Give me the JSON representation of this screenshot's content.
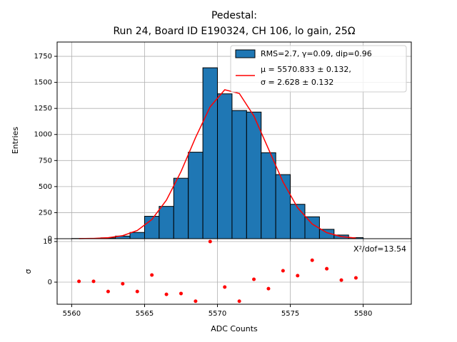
{
  "chart_data": [
    {
      "type": "histogram",
      "title": [
        "Pedestal:",
        "Run 24, Board ID E190324, CH 106, lo gain, 25Ω"
      ],
      "ylabel": "Entries",
      "name": "RMS=2.7, γ=0.09, dip=0.96",
      "color": "#1f77b4",
      "bins": [
        5560,
        5561,
        5562,
        5563,
        5564,
        5565,
        5566,
        5567,
        5568,
        5569,
        5570,
        5571,
        5572,
        5573,
        5574,
        5575,
        5576,
        5577,
        5578,
        5579,
        5580
      ],
      "values": [
        2,
        3,
        8,
        25,
        60,
        215,
        310,
        580,
        830,
        1640,
        1390,
        1230,
        1215,
        825,
        615,
        330,
        210,
        90,
        35,
        10
      ],
      "fit": {
        "name": [
          "μ = 5570.833 ± 0.132,",
          "σ = 2.628 ± 0.132"
        ],
        "color": "#ff0000",
        "x": [
          5560.5,
          5561.5,
          5562.5,
          5563.5,
          5564.5,
          5565.5,
          5566.5,
          5567.5,
          5568.5,
          5569.5,
          5570.5,
          5571.5,
          5572.5,
          5573.5,
          5574.5,
          5575.5,
          5576.5,
          5577.5,
          5578.5,
          5579.5
        ],
        "values": [
          0.6,
          2.6,
          9.5,
          29,
          79,
          184,
          370,
          644,
          971,
          1266,
          1429,
          1394,
          1178,
          861,
          544,
          297,
          141,
          58,
          20,
          6
        ]
      },
      "xlim": [
        5559,
        5583.3
      ],
      "xticks": [
        5560,
        5565,
        5570,
        5575,
        5580
      ],
      "ylim": [
        0,
        1887
      ],
      "yticks": [
        0,
        250,
        500,
        750,
        1000,
        1250,
        1500,
        1750
      ],
      "grid": true,
      "legend": "upper right"
    },
    {
      "type": "scatter",
      "xlabel": "ADC Counts",
      "ylabel": "σ",
      "color": "#ff0000",
      "annotation": "X²/dof=13.54",
      "x": [
        5560.5,
        5561.5,
        5562.5,
        5563.5,
        5564.5,
        5565.5,
        5566.5,
        5567.5,
        5568.5,
        5569.5,
        5570.5,
        5571.5,
        5572.5,
        5573.5,
        5574.5,
        5575.5,
        5576.5,
        5577.5,
        5578.5,
        5579.5
      ],
      "values": [
        0.2,
        0.2,
        -2.3,
        -0.4,
        -2.3,
        1.75,
        -3.0,
        -2.8,
        -4.7,
        10,
        -1.2,
        -4.7,
        0.7,
        -1.6,
        2.8,
        1.6,
        5.4,
        3.3,
        0.5,
        1.05
      ],
      "xlim": [
        5559,
        5583.3
      ],
      "xticks": [
        5560,
        5565,
        5570,
        5575,
        5580
      ],
      "ylim": [
        -5.44,
        10.7
      ],
      "yticks": [
        0,
        10
      ],
      "grid": true
    }
  ]
}
